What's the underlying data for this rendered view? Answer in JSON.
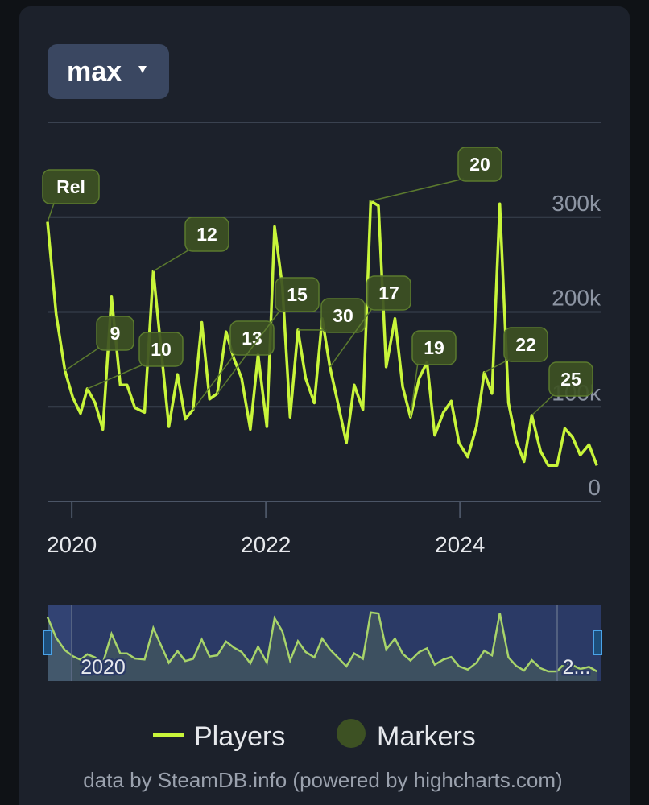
{
  "chart_data": {
    "type": "line",
    "range_button": "max",
    "x": [
      2019.75,
      2019.84,
      2019.93,
      2020.01,
      2020.09,
      2020.16,
      2020.24,
      2020.32,
      2020.41,
      2020.5,
      2020.57,
      2020.65,
      2020.75,
      2020.84,
      2020.92,
      2021.0,
      2021.09,
      2021.17,
      2021.25,
      2021.34,
      2021.42,
      2021.5,
      2021.59,
      2021.67,
      2021.75,
      2021.84,
      2021.92,
      2022.01,
      2022.09,
      2022.17,
      2022.25,
      2022.33,
      2022.41,
      2022.5,
      2022.58,
      2022.66,
      2022.75,
      2022.83,
      2022.91,
      2023.0,
      2023.08,
      2023.16,
      2023.24,
      2023.33,
      2023.41,
      2023.49,
      2023.58,
      2023.66,
      2023.74,
      2023.83,
      2023.91,
      2023.99,
      2024.08,
      2024.17,
      2024.25,
      2024.33,
      2024.41,
      2024.5,
      2024.58,
      2024.66,
      2024.74,
      2024.83,
      2024.91,
      2025.0,
      2025.08,
      2025.16,
      2025.24,
      2025.33,
      2025.41
    ],
    "series": [
      {
        "name": "Players",
        "color": "#c8f53a",
        "values": [
          295000,
          197000,
          138000,
          110000,
          93000,
          119000,
          104000,
          76000,
          216000,
          123000,
          123000,
          99000,
          94000,
          243000,
          161000,
          79000,
          134000,
          87000,
          97000,
          189000,
          108000,
          114000,
          179000,
          151000,
          130000,
          76000,
          155000,
          79000,
          290000,
          227000,
          89000,
          181000,
          130000,
          104000,
          193000,
          142000,
          100000,
          62000,
          123000,
          97000,
          317000,
          312000,
          142000,
          193000,
          121000,
          89000,
          130000,
          147000,
          70000,
          94000,
          106000,
          62000,
          47000,
          79000,
          136000,
          114000,
          314000,
          104000,
          64000,
          42000,
          91000,
          53000,
          38000,
          38000,
          77000,
          68000,
          49000,
          60000,
          38000
        ]
      }
    ],
    "markers": {
      "name": "Markers",
      "color": "#3d5123",
      "items": [
        {
          "label": "Rel",
          "x": 2019.75
        },
        {
          "label": "9",
          "x": 2019.93
        },
        {
          "label": "10",
          "x": 2020.16
        },
        {
          "label": "12",
          "x": 2020.84
        },
        {
          "label": "13",
          "x": 2021.25
        },
        {
          "label": "15",
          "x": 2021.5
        },
        {
          "label": "30",
          "x": 2022.33
        },
        {
          "label": "17",
          "x": 2022.66
        },
        {
          "label": "19",
          "x": 2023.49
        },
        {
          "label": "20",
          "x": 2023.08
        },
        {
          "label": "22",
          "x": 2024.25
        },
        {
          "label": "25",
          "x": 2024.74
        }
      ]
    },
    "xlim": [
      2019.75,
      2025.45
    ],
    "xticks": [
      2020,
      2022,
      2024
    ],
    "ylim": [
      0,
      400000
    ],
    "yticks": [
      0,
      {
        "value": 100000,
        "label": "100k"
      },
      {
        "value": 200000,
        "label": "200k"
      },
      {
        "value": 300000,
        "label": "300k"
      }
    ],
    "grid": true,
    "navigator": {
      "labels": [
        "2020",
        "2..."
      ]
    },
    "credit": "data by SteamDB.info (powered by highcharts.com)"
  }
}
